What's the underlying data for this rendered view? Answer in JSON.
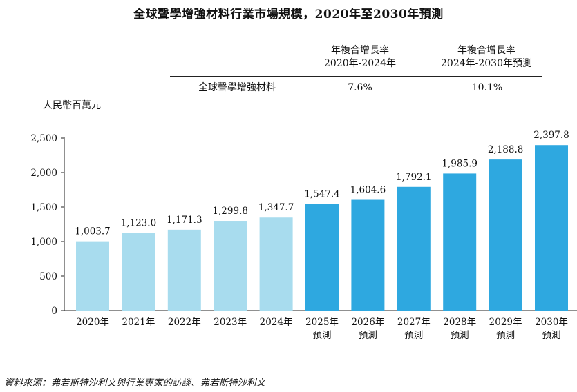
{
  "title": "全球聲學增強材料行業市場規模，2020年至2030年預測",
  "cagr_table": {
    "header_1": [
      "年複合增長率",
      "2020年-2024年"
    ],
    "header_2": [
      "年複合增長率",
      "2024年-2030年預測"
    ],
    "row_label": "全球聲學增強材料",
    "value_1": "7.6%",
    "value_2": "10.1%"
  },
  "source": "資料來源：弗若斯特沙利文與行業專家的訪談、弗若斯特沙利文",
  "colors": {
    "historical": "#a8dcee",
    "forecast": "#2ea8e0",
    "axis": "#222222"
  },
  "chart_data": {
    "type": "bar",
    "title": "全球聲學增強材料行業市場規模，2020年至2030年預測",
    "ylabel": "人民幣百萬元",
    "xlabel": "",
    "ylim": [
      0,
      2500
    ],
    "yticks": [
      0,
      500,
      1000,
      1500,
      2000,
      2500
    ],
    "ytick_labels": [
      "0",
      "500",
      "1,000",
      "1,500",
      "2,000",
      "2,500"
    ],
    "categories": [
      [
        "2020年"
      ],
      [
        "2021年"
      ],
      [
        "2022年"
      ],
      [
        "2023年"
      ],
      [
        "2024年"
      ],
      [
        "2025年",
        "預測"
      ],
      [
        "2026年",
        "預測"
      ],
      [
        "2027年",
        "預測"
      ],
      [
        "2028年",
        "預測"
      ],
      [
        "2029年",
        "預測"
      ],
      [
        "2030年",
        "預測"
      ]
    ],
    "values": [
      1003.7,
      1123.0,
      1171.3,
      1299.8,
      1347.7,
      1547.4,
      1604.6,
      1792.1,
      1985.9,
      2188.8,
      2397.8
    ],
    "value_labels": [
      "1,003.7",
      "1,123.0",
      "1,171.3",
      "1,299.8",
      "1,347.7",
      "1,547.4",
      "1,604.6",
      "1,792.1",
      "1,985.9",
      "2,188.8",
      "2,397.8"
    ],
    "forecast": [
      false,
      false,
      false,
      false,
      false,
      true,
      true,
      true,
      true,
      true,
      true
    ]
  }
}
